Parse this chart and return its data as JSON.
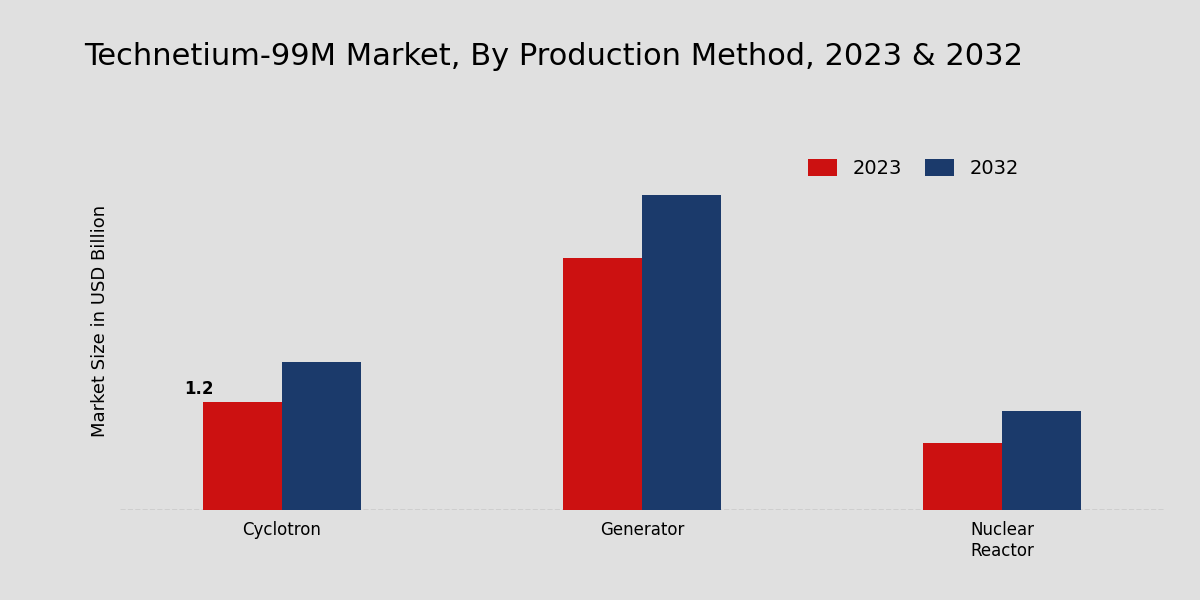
{
  "title": "Technetium-99M Market, By Production Method, 2023 & 2032",
  "ylabel": "Market Size in USD Billion",
  "categories": [
    "Cyclotron",
    "Generator",
    "Nuclear\nReactor"
  ],
  "values_2023": [
    1.2,
    2.8,
    0.75
  ],
  "values_2032": [
    1.65,
    3.5,
    1.1
  ],
  "bar_color_2023": "#cc1111",
  "bar_color_2032": "#1b3a6b",
  "background_color": "#e0e0e0",
  "annotation_label": "1.2",
  "annotation_bar_index": 0,
  "bar_width": 0.22,
  "legend_labels": [
    "2023",
    "2032"
  ],
  "title_fontsize": 22,
  "label_fontsize": 13,
  "tick_fontsize": 12,
  "annotation_fontsize": 12,
  "ylim": [
    0,
    4.2
  ],
  "xlim": [
    -0.45,
    2.45
  ]
}
